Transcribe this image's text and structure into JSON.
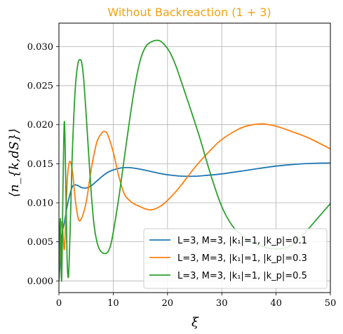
{
  "chart_data": {
    "type": "line",
    "title": "Without Backreaction (1 + 3)",
    "title_color": "#f2a20f",
    "xlabel": "ξ",
    "ylabel": "⟨n_{k,dS}⟩",
    "xlim": [
      0,
      50
    ],
    "ylim": [
      -0.0015,
      0.033
    ],
    "xticks": [
      0,
      10,
      20,
      30,
      40,
      50
    ],
    "xtick_labels": [
      "0",
      "10",
      "20",
      "30",
      "40",
      "50"
    ],
    "yticks": [
      0.0,
      0.005,
      0.01,
      0.015,
      0.02,
      0.025,
      0.03
    ],
    "ytick_labels": [
      "0.000",
      "0.005",
      "0.010",
      "0.015",
      "0.020",
      "0.025",
      "0.030"
    ],
    "grid": true,
    "legend_position": "lower-right",
    "series": [
      {
        "name": "L=3, M=3, |k₁|=1, |k_p|=0.1",
        "color": "#1f77b4",
        "x": [
          0,
          0.3,
          0.6,
          1.0,
          1.5,
          2.0,
          2.5,
          3.0,
          3.5,
          4.0,
          4.5,
          5.0,
          5.5,
          6.0,
          7.0,
          8.0,
          9.0,
          10.0,
          11.0,
          12.0,
          13.0,
          15.0,
          17.0,
          19.0,
          21.0,
          23.0,
          25.0,
          27.0,
          30.0,
          35.0,
          40.0,
          45.0,
          50.0
        ],
        "y": [
          0.0,
          0.003,
          0.006,
          0.0075,
          0.0095,
          0.011,
          0.0121,
          0.0123,
          0.0122,
          0.012,
          0.0119,
          0.0119,
          0.012,
          0.0122,
          0.0128,
          0.0134,
          0.0139,
          0.0142,
          0.0144,
          0.0145,
          0.0145,
          0.0143,
          0.014,
          0.0137,
          0.0135,
          0.0134,
          0.0134,
          0.0135,
          0.0137,
          0.0142,
          0.0147,
          0.015,
          0.0151
        ]
      },
      {
        "name": "L=3, M=3, |k₁|=1, |k_p|=0.3",
        "color": "#ff7f0e",
        "x": [
          0,
          0.3,
          0.6,
          1.0,
          1.3,
          1.6,
          2.0,
          2.5,
          3.0,
          3.5,
          4.0,
          5.0,
          6.0,
          7.0,
          8.0,
          8.5,
          9.0,
          10.0,
          11.0,
          12.0,
          13.0,
          14.0,
          15.0,
          16.0,
          17.0,
          18.0,
          19.0,
          20.0,
          22.0,
          25.0,
          28.0,
          30.0,
          33.0,
          35.0,
          37.5,
          40.0,
          43.0,
          46.0,
          50.0
        ],
        "y": [
          0.0,
          0.006,
          0.0075,
          0.004,
          0.009,
          0.0135,
          0.0153,
          0.014,
          0.0105,
          0.0082,
          0.0078,
          0.01,
          0.0145,
          0.0178,
          0.019,
          0.0191,
          0.0187,
          0.0165,
          0.0135,
          0.0112,
          0.0103,
          0.0098,
          0.0095,
          0.0092,
          0.0091,
          0.0093,
          0.0097,
          0.0103,
          0.0118,
          0.0145,
          0.0168,
          0.0181,
          0.0194,
          0.0199,
          0.0201,
          0.0198,
          0.0191,
          0.0183,
          0.0169
        ]
      },
      {
        "name": "L=3, M=3, |k₁|=1, |k_p|=0.5",
        "color": "#2ca02c",
        "x": [
          0,
          0.25,
          0.5,
          0.75,
          1.0,
          1.25,
          1.5,
          1.75,
          2.0,
          2.25,
          2.5,
          3.0,
          3.5,
          4.0,
          4.3,
          4.6,
          5.0,
          5.5,
          6.0,
          6.5,
          7.0,
          7.5,
          8.0,
          8.5,
          9.0,
          9.5,
          10.0,
          11.0,
          12.0,
          13.0,
          14.0,
          15.0,
          16.0,
          17.0,
          18.0,
          18.7,
          19.5,
          20.5,
          21.5,
          22.5,
          24.0,
          26.0,
          28.0,
          30.0,
          32.0,
          34.0,
          36.0,
          38.0,
          40.0,
          42.0,
          44.0,
          46.0,
          48.0,
          50.0
        ],
        "y": [
          0.0,
          0.008,
          0.0,
          0.012,
          0.0204,
          0.013,
          0.003,
          0.0005,
          0.005,
          0.011,
          0.017,
          0.0245,
          0.0278,
          0.0283,
          0.0275,
          0.0255,
          0.0215,
          0.016,
          0.0108,
          0.007,
          0.005,
          0.004,
          0.0036,
          0.0035,
          0.0037,
          0.0045,
          0.0062,
          0.0105,
          0.0155,
          0.0205,
          0.025,
          0.0283,
          0.03,
          0.0306,
          0.0308,
          0.0307,
          0.0302,
          0.0292,
          0.0276,
          0.0256,
          0.0225,
          0.0182,
          0.0135,
          0.0095,
          0.007,
          0.0057,
          0.0048,
          0.0043,
          0.0041,
          0.0043,
          0.0052,
          0.0067,
          0.0083,
          0.0099
        ]
      }
    ]
  }
}
